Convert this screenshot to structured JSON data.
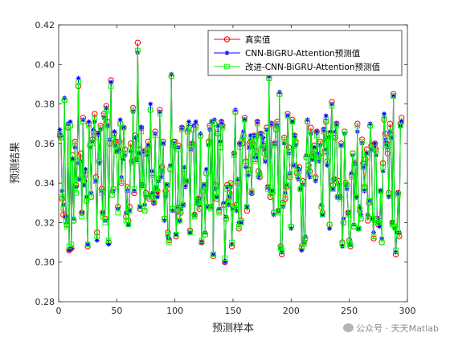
{
  "chart_data": {
    "type": "line",
    "xlabel": "预测样本",
    "ylabel": "预测结果",
    "xlim": [
      0,
      300
    ],
    "ylim": [
      0.28,
      0.42
    ],
    "xticks": [
      0,
      50,
      100,
      150,
      200,
      250,
      300
    ],
    "yticks": [
      0.28,
      0.3,
      0.32,
      0.34,
      0.36,
      0.38,
      0.4,
      0.42
    ],
    "legend_position": "top-right",
    "grid": false,
    "series": [
      {
        "name": "真实值",
        "color": "#ff0000",
        "marker": "circle"
      },
      {
        "name": "CNN-BiGRU-Attention预测值",
        "color": "#0000ff",
        "marker": "asterisk"
      },
      {
        "name": "改进-CNN-BiGRU-Attention预测值",
        "color": "#00ff00",
        "marker": "square"
      }
    ],
    "x_range": [
      1,
      295
    ],
    "true_values": [
      0.364,
      0.363,
      0.332,
      0.324,
      0.382,
      0.323,
      0.319,
      0.368,
      0.306,
      0.369,
      0.307,
      0.354,
      0.321,
      0.361,
      0.339,
      0.351,
      0.389,
      0.342,
      0.355,
      0.325,
      0.373,
      0.341,
      0.344,
      0.331,
      0.308,
      0.37,
      0.359,
      0.333,
      0.362,
      0.366,
      0.375,
      0.343,
      0.315,
      0.365,
      0.351,
      0.369,
      0.337,
      0.325,
      0.375,
      0.322,
      0.379,
      0.371,
      0.31,
      0.36,
      0.392,
      0.334,
      0.337,
      0.365,
      0.361,
      0.357,
      0.328,
      0.361,
      0.37,
      0.34,
      0.355,
      0.368,
      0.357,
      0.323,
      0.338,
      0.321,
      0.328,
      0.36,
      0.351,
      0.378,
      0.335,
      0.364,
      0.352,
      0.411,
      0.357,
      0.327,
      0.368,
      0.339,
      0.356,
      0.326,
      0.335,
      0.357,
      0.361,
      0.332,
      0.377,
      0.345,
      0.333,
      0.33,
      0.366,
      0.335,
      0.336,
      0.342,
      0.377,
      0.345,
      0.348,
      0.361,
      0.322,
      0.336,
      0.339,
      0.315,
      0.311,
      0.347,
      0.394,
      0.327,
      0.361,
      0.361,
      0.313,
      0.326,
      0.359,
      0.321,
      0.325,
      0.368,
      0.329,
      0.347,
      0.34,
      0.341,
      0.366,
      0.368,
      0.316,
      0.359,
      0.36,
      0.367,
      0.324,
      0.369,
      0.33,
      0.332,
      0.327,
      0.364,
      0.31,
      0.336,
      0.339,
      0.314,
      0.345,
      0.328,
      0.361,
      0.369,
      0.328,
      0.371,
      0.303,
      0.37,
      0.339,
      0.332,
      0.365,
      0.326,
      0.358,
      0.371,
      0.369,
      0.329,
      0.3,
      0.322,
      0.339,
      0.331,
      0.335,
      0.34,
      0.308,
      0.328,
      0.355,
      0.376,
      0.329,
      0.34,
      0.317,
      0.36,
      0.321,
      0.36,
      0.364,
      0.373,
      0.351,
      0.326,
      0.347,
      0.36,
      0.361,
      0.335,
      0.36,
      0.364,
      0.352,
      0.356,
      0.371,
      0.346,
      0.343,
      0.365,
      0.358,
      0.359,
      0.355,
      0.352,
      0.368,
      0.338,
      0.393,
      0.333,
      0.37,
      0.335,
      0.325,
      0.36,
      0.367,
      0.371,
      0.326,
      0.385,
      0.308,
      0.304,
      0.33,
      0.363,
      0.332,
      0.338,
      0.375,
      0.358,
      0.343,
      0.318,
      0.372,
      0.349,
      0.364,
      0.361,
      0.345,
      0.343,
      0.348,
      0.337,
      0.307,
      0.341,
      0.31,
      0.312,
      0.353,
      0.371,
      0.349,
      0.346,
      0.368,
      0.354,
      0.355,
      0.359,
      0.343,
      0.366,
      0.354,
      0.354,
      0.361,
      0.328,
      0.325,
      0.367,
      0.356,
      0.371,
      0.351,
      0.365,
      0.319,
      0.365,
      0.381,
      0.339,
      0.342,
      0.363,
      0.37,
      0.333,
      0.341,
      0.333,
      0.36,
      0.31,
      0.32,
      0.366,
      0.34,
      0.339,
      0.325,
      0.311,
      0.308,
      0.344,
      0.355,
      0.318,
      0.35,
      0.333,
      0.37,
      0.317,
      0.326,
      0.322,
      0.362,
      0.35,
      0.338,
      0.352,
      0.357,
      0.321,
      0.33,
      0.369,
      0.359,
      0.322,
      0.312,
      0.36,
      0.357,
      0.322,
      0.319,
      0.32,
      0.336,
      0.31,
      0.35,
      0.372,
      0.365,
      0.36,
      0.355,
      0.335,
      0.37,
      0.364,
      0.32,
      0.385,
      0.318,
      0.304,
      0.317,
      0.335,
      0.313,
      0.37,
      0.373
    ],
    "cnn_bigru_attention_pred": [
      0.367,
      0.364,
      0.336,
      0.329,
      0.383,
      0.323,
      0.32,
      0.37,
      0.306,
      0.371,
      0.307,
      0.352,
      0.322,
      0.358,
      0.338,
      0.35,
      0.393,
      0.342,
      0.351,
      0.325,
      0.372,
      0.339,
      0.347,
      0.333,
      0.309,
      0.371,
      0.358,
      0.335,
      0.361,
      0.367,
      0.371,
      0.341,
      0.311,
      0.365,
      0.35,
      0.367,
      0.336,
      0.325,
      0.373,
      0.321,
      0.378,
      0.369,
      0.309,
      0.362,
      0.391,
      0.336,
      0.336,
      0.366,
      0.359,
      0.356,
      0.327,
      0.357,
      0.372,
      0.343,
      0.352,
      0.368,
      0.354,
      0.325,
      0.336,
      0.319,
      0.326,
      0.356,
      0.351,
      0.376,
      0.336,
      0.363,
      0.352,
      0.406,
      0.355,
      0.328,
      0.368,
      0.339,
      0.356,
      0.329,
      0.333,
      0.354,
      0.359,
      0.334,
      0.38,
      0.346,
      0.335,
      0.33,
      0.365,
      0.338,
      0.333,
      0.341,
      0.376,
      0.343,
      0.346,
      0.36,
      0.321,
      0.333,
      0.339,
      0.313,
      0.312,
      0.349,
      0.395,
      0.326,
      0.36,
      0.358,
      0.314,
      0.328,
      0.358,
      0.321,
      0.327,
      0.368,
      0.329,
      0.348,
      0.338,
      0.341,
      0.367,
      0.371,
      0.315,
      0.357,
      0.36,
      0.369,
      0.324,
      0.371,
      0.33,
      0.332,
      0.329,
      0.365,
      0.31,
      0.338,
      0.339,
      0.315,
      0.347,
      0.328,
      0.359,
      0.367,
      0.328,
      0.371,
      0.304,
      0.372,
      0.337,
      0.333,
      0.369,
      0.327,
      0.361,
      0.371,
      0.369,
      0.33,
      0.3,
      0.323,
      0.338,
      0.329,
      0.333,
      0.338,
      0.309,
      0.327,
      0.355,
      0.377,
      0.326,
      0.342,
      0.32,
      0.36,
      0.32,
      0.363,
      0.366,
      0.372,
      0.348,
      0.328,
      0.344,
      0.358,
      0.364,
      0.335,
      0.358,
      0.364,
      0.353,
      0.353,
      0.371,
      0.343,
      0.345,
      0.365,
      0.359,
      0.363,
      0.357,
      0.351,
      0.367,
      0.338,
      0.394,
      0.336,
      0.37,
      0.336,
      0.324,
      0.36,
      0.369,
      0.369,
      0.326,
      0.386,
      0.307,
      0.305,
      0.328,
      0.36,
      0.335,
      0.339,
      0.374,
      0.355,
      0.345,
      0.317,
      0.371,
      0.349,
      0.364,
      0.359,
      0.348,
      0.342,
      0.347,
      0.337,
      0.306,
      0.339,
      0.31,
      0.313,
      0.354,
      0.372,
      0.345,
      0.343,
      0.365,
      0.352,
      0.353,
      0.358,
      0.341,
      0.366,
      0.355,
      0.351,
      0.359,
      0.329,
      0.324,
      0.367,
      0.357,
      0.374,
      0.349,
      0.363,
      0.317,
      0.366,
      0.38,
      0.337,
      0.342,
      0.366,
      0.37,
      0.333,
      0.339,
      0.333,
      0.359,
      0.308,
      0.322,
      0.365,
      0.339,
      0.337,
      0.325,
      0.309,
      0.309,
      0.345,
      0.354,
      0.319,
      0.35,
      0.333,
      0.366,
      0.317,
      0.328,
      0.324,
      0.36,
      0.348,
      0.336,
      0.349,
      0.355,
      0.324,
      0.331,
      0.37,
      0.357,
      0.322,
      0.315,
      0.36,
      0.354,
      0.32,
      0.322,
      0.318,
      0.336,
      0.312,
      0.346,
      0.375,
      0.362,
      0.36,
      0.358,
      0.333,
      0.366,
      0.363,
      0.32,
      0.384,
      0.317,
      0.305,
      0.315,
      0.335,
      0.315,
      0.369,
      0.371
    ],
    "improved_cnn_bigru_attention_pred": [
      0.365,
      0.363,
      0.333,
      0.327,
      0.382,
      0.321,
      0.318,
      0.369,
      0.308,
      0.369,
      0.309,
      0.352,
      0.321,
      0.36,
      0.335,
      0.351,
      0.391,
      0.342,
      0.352,
      0.323,
      0.371,
      0.339,
      0.345,
      0.331,
      0.309,
      0.369,
      0.359,
      0.333,
      0.36,
      0.365,
      0.373,
      0.341,
      0.313,
      0.363,
      0.351,
      0.368,
      0.335,
      0.323,
      0.374,
      0.32,
      0.377,
      0.369,
      0.311,
      0.361,
      0.389,
      0.334,
      0.337,
      0.364,
      0.359,
      0.356,
      0.325,
      0.359,
      0.37,
      0.341,
      0.354,
      0.368,
      0.355,
      0.321,
      0.337,
      0.319,
      0.326,
      0.358,
      0.35,
      0.377,
      0.337,
      0.362,
      0.351,
      0.407,
      0.355,
      0.328,
      0.366,
      0.338,
      0.355,
      0.326,
      0.334,
      0.356,
      0.359,
      0.333,
      0.377,
      0.344,
      0.333,
      0.331,
      0.364,
      0.337,
      0.335,
      0.342,
      0.375,
      0.345,
      0.346,
      0.36,
      0.322,
      0.334,
      0.339,
      0.314,
      0.31,
      0.347,
      0.394,
      0.327,
      0.359,
      0.36,
      0.314,
      0.327,
      0.357,
      0.321,
      0.326,
      0.367,
      0.329,
      0.347,
      0.339,
      0.341,
      0.366,
      0.369,
      0.315,
      0.358,
      0.359,
      0.367,
      0.323,
      0.368,
      0.331,
      0.33,
      0.328,
      0.364,
      0.311,
      0.336,
      0.339,
      0.314,
      0.345,
      0.328,
      0.36,
      0.368,
      0.327,
      0.371,
      0.304,
      0.37,
      0.338,
      0.333,
      0.366,
      0.325,
      0.358,
      0.37,
      0.368,
      0.328,
      0.302,
      0.322,
      0.337,
      0.33,
      0.333,
      0.339,
      0.31,
      0.327,
      0.354,
      0.376,
      0.327,
      0.341,
      0.318,
      0.358,
      0.32,
      0.362,
      0.364,
      0.372,
      0.35,
      0.328,
      0.346,
      0.358,
      0.362,
      0.336,
      0.359,
      0.363,
      0.351,
      0.355,
      0.37,
      0.344,
      0.344,
      0.364,
      0.358,
      0.36,
      0.355,
      0.351,
      0.366,
      0.337,
      0.393,
      0.334,
      0.369,
      0.336,
      0.325,
      0.359,
      0.367,
      0.37,
      0.325,
      0.385,
      0.307,
      0.306,
      0.329,
      0.362,
      0.333,
      0.339,
      0.374,
      0.356,
      0.344,
      0.318,
      0.371,
      0.349,
      0.363,
      0.36,
      0.346,
      0.343,
      0.346,
      0.337,
      0.308,
      0.34,
      0.309,
      0.312,
      0.353,
      0.371,
      0.347,
      0.344,
      0.366,
      0.352,
      0.354,
      0.358,
      0.342,
      0.364,
      0.353,
      0.352,
      0.36,
      0.328,
      0.324,
      0.366,
      0.355,
      0.372,
      0.351,
      0.364,
      0.319,
      0.364,
      0.379,
      0.337,
      0.341,
      0.364,
      0.369,
      0.333,
      0.34,
      0.332,
      0.359,
      0.309,
      0.32,
      0.366,
      0.339,
      0.339,
      0.324,
      0.31,
      0.309,
      0.343,
      0.355,
      0.318,
      0.351,
      0.333,
      0.369,
      0.317,
      0.327,
      0.322,
      0.361,
      0.348,
      0.337,
      0.35,
      0.355,
      0.323,
      0.331,
      0.369,
      0.357,
      0.322,
      0.313,
      0.358,
      0.356,
      0.321,
      0.32,
      0.32,
      0.336,
      0.31,
      0.348,
      0.373,
      0.363,
      0.359,
      0.357,
      0.334,
      0.368,
      0.363,
      0.319,
      0.384,
      0.318,
      0.306,
      0.317,
      0.334,
      0.314,
      0.369,
      0.371
    ]
  },
  "watermark": {
    "text": "公众号 · 天天Matlab",
    "icon": "wechat-icon"
  }
}
